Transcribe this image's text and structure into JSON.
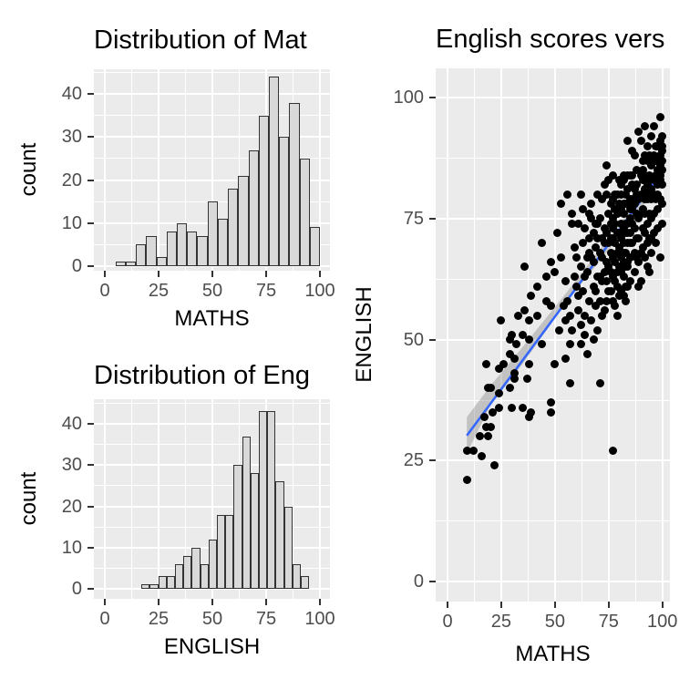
{
  "figure": {
    "background": "#ffffff",
    "panel_background": "#EBEBEB",
    "gridline_color": "#ffffff",
    "bar_fill": "#D9D9D9",
    "bar_stroke": "#333333",
    "point_color": "#000000",
    "smooth_line_color": "#3366FF",
    "ribbon_color": "rgba(100,100,100,0.30)",
    "tick_label_color": "#4D4D4D"
  },
  "chart_data": [
    {
      "id": "hist_maths",
      "type": "bar",
      "title": "Distribution of Mat",
      "xlabel": "MATHS",
      "ylabel": "count",
      "x_ticks": [
        0,
        25,
        50,
        75,
        100
      ],
      "y_ticks": [
        0,
        10,
        20,
        30,
        40
      ],
      "xlim": [
        -5,
        104.5
      ],
      "ylim": [
        -1.1,
        45.8
      ],
      "grid": true,
      "legend": "none",
      "bin_start": 5,
      "bin_width": 4.75,
      "counts": [
        1,
        1,
        5,
        7,
        2,
        8,
        10,
        8,
        7,
        15,
        11,
        18,
        21,
        27,
        35,
        44,
        30,
        38,
        25,
        9
      ]
    },
    {
      "id": "hist_english",
      "type": "bar",
      "title": "Distribution of Eng",
      "xlabel": "ENGLISH",
      "ylabel": "count",
      "x_ticks": [
        0,
        25,
        50,
        75,
        100
      ],
      "y_ticks": [
        0,
        10,
        20,
        30,
        40
      ],
      "xlim": [
        -5,
        104.5
      ],
      "ylim": [
        -1.1,
        45.8
      ],
      "grid": true,
      "legend": "none",
      "bin_start": 17,
      "bin_width": 3.9,
      "counts": [
        1,
        1,
        3,
        3,
        6,
        8,
        10,
        6,
        12,
        18,
        18,
        30,
        37,
        28,
        43,
        43,
        26,
        20,
        6,
        3
      ]
    },
    {
      "id": "scatter_eng_vs_maths",
      "type": "scatter",
      "title": "English scores vers",
      "xlabel": "MATHS",
      "ylabel": "ENGLISH",
      "x_ticks": [
        0,
        25,
        50,
        75,
        100
      ],
      "y_ticks": [
        0,
        25,
        50,
        75,
        100
      ],
      "xlim": [
        -5.6,
        104
      ],
      "ylim": [
        -4.1,
        106.1
      ],
      "grid": true,
      "legend": "none",
      "smooth": {
        "line": [
          [
            9,
            30.2
          ],
          [
            101,
            85.3
          ]
        ],
        "ribbon": [
          [
            9,
            34
          ],
          [
            20,
            40.5
          ],
          [
            35,
            48.5
          ],
          [
            55,
            59.5
          ],
          [
            75,
            71
          ],
          [
            90,
            80
          ],
          [
            101,
            87.5
          ],
          [
            101,
            83
          ],
          [
            90,
            77
          ],
          [
            75,
            68.5
          ],
          [
            55,
            57.5
          ],
          [
            35,
            45
          ],
          [
            20,
            36.5
          ],
          [
            9,
            26.5
          ]
        ]
      },
      "points": [
        [
          9,
          21
        ],
        [
          9,
          27
        ],
        [
          12,
          27
        ],
        [
          16,
          26
        ],
        [
          22,
          24
        ],
        [
          15,
          30
        ],
        [
          18,
          32
        ],
        [
          20,
          32
        ],
        [
          19,
          30
        ],
        [
          17,
          34
        ],
        [
          21,
          35
        ],
        [
          24,
          36
        ],
        [
          19,
          40
        ],
        [
          20,
          40
        ],
        [
          24,
          39
        ],
        [
          30,
          36
        ],
        [
          18,
          45
        ],
        [
          24,
          44
        ],
        [
          26,
          45
        ],
        [
          29,
          47
        ],
        [
          31,
          43
        ],
        [
          31,
          42
        ],
        [
          29,
          40
        ],
        [
          35,
          36
        ],
        [
          38,
          34
        ],
        [
          39,
          35
        ],
        [
          48,
          37
        ],
        [
          48,
          35
        ],
        [
          29,
          50
        ],
        [
          32,
          49
        ],
        [
          38,
          50
        ],
        [
          44,
          49
        ],
        [
          31,
          46
        ],
        [
          38,
          45
        ],
        [
          37,
          42
        ],
        [
          57,
          49
        ],
        [
          55,
          46
        ],
        [
          57,
          41
        ],
        [
          50,
          45
        ],
        [
          71,
          41
        ],
        [
          77,
          27
        ],
        [
          56,
          80
        ],
        [
          53,
          78
        ],
        [
          58,
          76
        ],
        [
          58,
          74
        ],
        [
          51,
          72
        ],
        [
          44,
          70
        ],
        [
          59,
          69
        ],
        [
          53,
          67
        ],
        [
          36,
          65
        ],
        [
          48,
          66
        ],
        [
          50,
          64
        ],
        [
          46,
          63
        ],
        [
          55,
          62
        ],
        [
          42,
          61
        ],
        [
          39,
          59
        ],
        [
          46,
          58
        ],
        [
          48,
          57
        ],
        [
          54,
          57
        ],
        [
          36,
          56
        ],
        [
          33,
          55
        ],
        [
          38,
          54
        ],
        [
          25,
          54
        ],
        [
          42,
          55
        ],
        [
          55,
          54
        ],
        [
          58,
          52
        ],
        [
          30,
          51
        ],
        [
          35,
          51
        ],
        [
          52,
          52
        ],
        [
          99,
          96
        ],
        [
          92,
          94
        ],
        [
          96,
          94
        ],
        [
          89,
          93
        ],
        [
          95,
          92
        ],
        [
          90,
          91
        ],
        [
          84,
          91
        ],
        [
          93,
          90
        ],
        [
          97,
          90
        ],
        [
          86,
          89
        ],
        [
          94,
          88
        ],
        [
          87,
          88
        ],
        [
          91,
          87
        ],
        [
          74,
          86
        ],
        [
          77,
          84
        ],
        [
          82,
          84
        ],
        [
          86,
          84
        ],
        [
          56,
          58
        ],
        [
          59,
          63
        ],
        [
          57,
          55
        ],
        [
          60,
          61
        ],
        [
          60,
          67
        ],
        [
          61,
          56
        ],
        [
          61,
          74
        ],
        [
          62,
          53
        ],
        [
          62,
          65
        ],
        [
          62,
          49
        ],
        [
          63,
          70
        ],
        [
          63,
          60
        ],
        [
          63,
          77
        ],
        [
          64,
          55
        ],
        [
          64,
          63
        ],
        [
          64,
          73
        ],
        [
          65,
          47
        ],
        [
          65,
          67
        ],
        [
          61,
          59
        ],
        [
          62,
          80
        ],
        [
          64,
          51
        ],
        [
          65,
          64
        ],
        [
          66,
          71
        ],
        [
          66,
          58
        ],
        [
          66,
          76
        ],
        [
          67,
          54
        ],
        [
          67,
          67
        ],
        [
          67,
          78
        ],
        [
          68,
          61
        ],
        [
          68,
          72
        ],
        [
          68,
          50
        ],
        [
          68,
          66
        ],
        [
          69,
          74
        ],
        [
          69,
          57
        ],
        [
          69,
          69
        ],
        [
          70,
          80
        ],
        [
          70,
          63
        ],
        [
          70,
          52
        ],
        [
          66,
          68
        ],
        [
          67,
          75
        ],
        [
          69,
          60
        ],
        [
          70,
          71
        ],
        [
          71,
          68
        ],
        [
          71,
          75
        ],
        [
          72,
          62
        ],
        [
          72,
          79
        ],
        [
          72,
          55
        ],
        [
          73,
          70
        ],
        [
          73,
          64
        ],
        [
          73,
          82
        ],
        [
          74,
          58
        ],
        [
          74,
          72
        ],
        [
          74,
          66
        ],
        [
          75,
          76
        ],
        [
          75,
          60
        ],
        [
          75,
          70
        ],
        [
          71,
          63
        ],
        [
          72,
          71
        ],
        [
          73,
          56
        ],
        [
          74,
          80
        ],
        [
          75,
          65
        ],
        [
          70,
          74
        ],
        [
          71,
          58
        ],
        [
          73,
          73
        ],
        [
          74,
          62
        ],
        [
          75,
          83
        ],
        [
          72,
          67
        ],
        [
          76,
          71
        ],
        [
          76,
          64
        ],
        [
          76,
          78
        ],
        [
          77,
          58
        ],
        [
          77,
          73
        ],
        [
          77,
          67
        ],
        [
          78,
          80
        ],
        [
          78,
          62
        ],
        [
          78,
          74
        ],
        [
          78,
          70
        ],
        [
          79,
          55
        ],
        [
          79,
          76
        ],
        [
          79,
          68
        ],
        [
          80,
          83
        ],
        [
          80,
          65
        ],
        [
          80,
          72
        ],
        [
          76,
          60
        ],
        [
          77,
          79
        ],
        [
          78,
          66
        ],
        [
          79,
          72
        ],
        [
          80,
          59
        ],
        [
          76,
          74
        ],
        [
          77,
          63
        ],
        [
          78,
          77
        ],
        [
          79,
          64
        ],
        [
          80,
          78
        ],
        [
          76,
          68
        ],
        [
          77,
          71
        ],
        [
          78,
          57
        ],
        [
          79,
          80
        ],
        [
          80,
          69
        ],
        [
          77,
          75
        ],
        [
          79,
          61
        ],
        [
          81,
          74
        ],
        [
          81,
          67
        ],
        [
          81,
          80
        ],
        [
          81,
          60
        ],
        [
          82,
          76
        ],
        [
          82,
          70
        ],
        [
          82,
          83
        ],
        [
          82,
          63
        ],
        [
          83,
          72
        ],
        [
          83,
          78
        ],
        [
          83,
          58
        ],
        [
          83,
          68
        ],
        [
          84,
          81
        ],
        [
          84,
          65
        ],
        [
          84,
          74
        ],
        [
          84,
          70
        ],
        [
          85,
          77
        ],
        [
          85,
          62
        ],
        [
          85,
          72
        ],
        [
          85,
          84
        ],
        [
          81,
          71
        ],
        [
          82,
          66
        ],
        [
          83,
          80
        ],
        [
          84,
          61
        ],
        [
          85,
          75
        ],
        [
          81,
          77
        ],
        [
          82,
          59
        ],
        [
          83,
          74
        ],
        [
          84,
          78
        ],
        [
          85,
          67
        ],
        [
          81,
          64
        ],
        [
          82,
          73
        ],
        [
          83,
          65
        ],
        [
          84,
          84
        ],
        [
          85,
          70
        ],
        [
          81,
          82
        ],
        [
          82,
          78
        ],
        [
          83,
          61
        ],
        [
          84,
          72
        ],
        [
          85,
          79
        ],
        [
          82,
          68
        ],
        [
          84,
          66
        ],
        [
          86,
          77
        ],
        [
          86,
          70
        ],
        [
          86,
          82
        ],
        [
          87,
          64
        ],
        [
          87,
          78
        ],
        [
          87,
          73
        ],
        [
          88,
          85
        ],
        [
          88,
          67
        ],
        [
          88,
          76
        ],
        [
          88,
          80
        ],
        [
          89,
          61
        ],
        [
          89,
          79
        ],
        [
          89,
          71
        ],
        [
          90,
          84
        ],
        [
          90,
          68
        ],
        [
          90,
          76
        ],
        [
          86,
          74
        ],
        [
          87,
          81
        ],
        [
          88,
          71
        ],
        [
          89,
          75
        ],
        [
          90,
          62
        ],
        [
          86,
          79
        ],
        [
          87,
          68
        ],
        [
          88,
          82
        ],
        [
          89,
          66
        ],
        [
          90,
          80
        ],
        [
          91,
          80
        ],
        [
          91,
          73
        ],
        [
          91,
          85
        ],
        [
          92,
          67
        ],
        [
          92,
          81
        ],
        [
          92,
          76
        ],
        [
          93,
          87
        ],
        [
          93,
          70
        ],
        [
          93,
          79
        ],
        [
          94,
          83
        ],
        [
          94,
          64
        ],
        [
          94,
          76
        ],
        [
          95,
          86
        ],
        [
          95,
          71
        ],
        [
          95,
          79
        ],
        [
          91,
          77
        ],
        [
          92,
          84
        ],
        [
          93,
          74
        ],
        [
          94,
          80
        ],
        [
          95,
          68
        ],
        [
          91,
          83
        ],
        [
          92,
          72
        ],
        [
          93,
          82
        ],
        [
          94,
          87
        ],
        [
          95,
          75
        ],
        [
          91,
          69
        ],
        [
          92,
          79
        ],
        [
          93,
          65
        ],
        [
          94,
          84
        ],
        [
          95,
          81
        ],
        [
          92,
          88
        ],
        [
          94,
          71
        ],
        [
          96,
          83
        ],
        [
          96,
          76
        ],
        [
          96,
          88
        ],
        [
          97,
          70
        ],
        [
          97,
          84
        ],
        [
          97,
          79
        ],
        [
          98,
          90
        ],
        [
          98,
          73
        ],
        [
          98,
          82
        ],
        [
          99,
          86
        ],
        [
          99,
          67
        ],
        [
          99,
          79
        ],
        [
          100,
          89
        ],
        [
          100,
          74
        ],
        [
          100,
          82
        ],
        [
          96,
          80
        ],
        [
          97,
          87
        ],
        [
          98,
          77
        ],
        [
          99,
          83
        ],
        [
          100,
          78
        ],
        [
          96,
          72
        ],
        [
          98,
          85
        ],
        [
          98,
          87
        ],
        [
          99,
          91
        ],
        [
          100,
          85
        ],
        [
          100,
          92
        ],
        [
          99,
          88
        ],
        [
          98,
          80
        ],
        [
          100,
          87
        ],
        [
          99,
          84
        ],
        [
          100,
          90
        ]
      ]
    }
  ]
}
